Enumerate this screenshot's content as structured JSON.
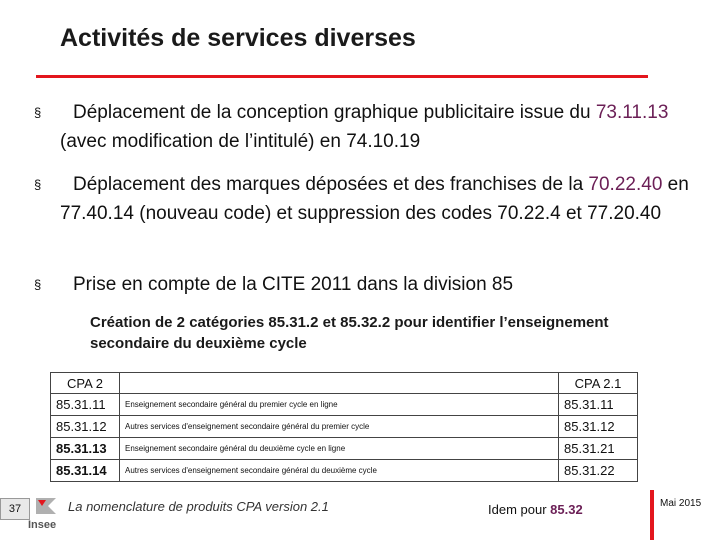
{
  "title": "Activités de services diverses",
  "bullets": [
    {
      "before": "Déplacement de la conception graphique publicitaire issue du ",
      "code": "73.11.13",
      "after": " (avec modification de l’intitulé) en 74.10.19"
    },
    {
      "before": "Déplacement des marques déposées et des franchises de la ",
      "code": "70.22.40",
      "after": " en 77.40.14 (nouveau code) et suppression des codes 70.22.4 et 77.20.40"
    },
    {
      "before": "Prise en compte de la CITE 2011 dans la division 85",
      "code": "",
      "after": ""
    }
  ],
  "bullet_mark": "§",
  "subheading": "Création de 2 catégories 85.31.2 et 85.32.2 pour identifier l’enseignement secondaire du deuxième cycle",
  "table": {
    "left_header": "CPA 2",
    "right_header": "CPA 2.1",
    "rows": [
      {
        "code": "85.31.11",
        "desc": "Enseignement secondaire général du premier cycle en ligne",
        "new": "85.31.11"
      },
      {
        "code": "85.31.12",
        "desc": "Autres services d'enseignement secondaire général du premier cycle",
        "new": "85.31.12"
      },
      {
        "code": "85.31.13",
        "desc": "Enseignement secondaire général du deuxième cycle en ligne",
        "new": "85.31.21"
      },
      {
        "code": "85.31.14",
        "desc": "Autres services d'enseignement secondaire général du deuxième cycle",
        "new": "85.31.22"
      }
    ]
  },
  "footer": {
    "page_number": "37",
    "logo_text": "Insee",
    "nomenclature": "La nomenclature de produits CPA version 2.1",
    "idem_prefix": "Idem pour ",
    "idem_code": "85.32",
    "date": "Mai 2015"
  },
  "colors": {
    "accent_red": "#e3161d",
    "highlight": "#6b1f56"
  }
}
